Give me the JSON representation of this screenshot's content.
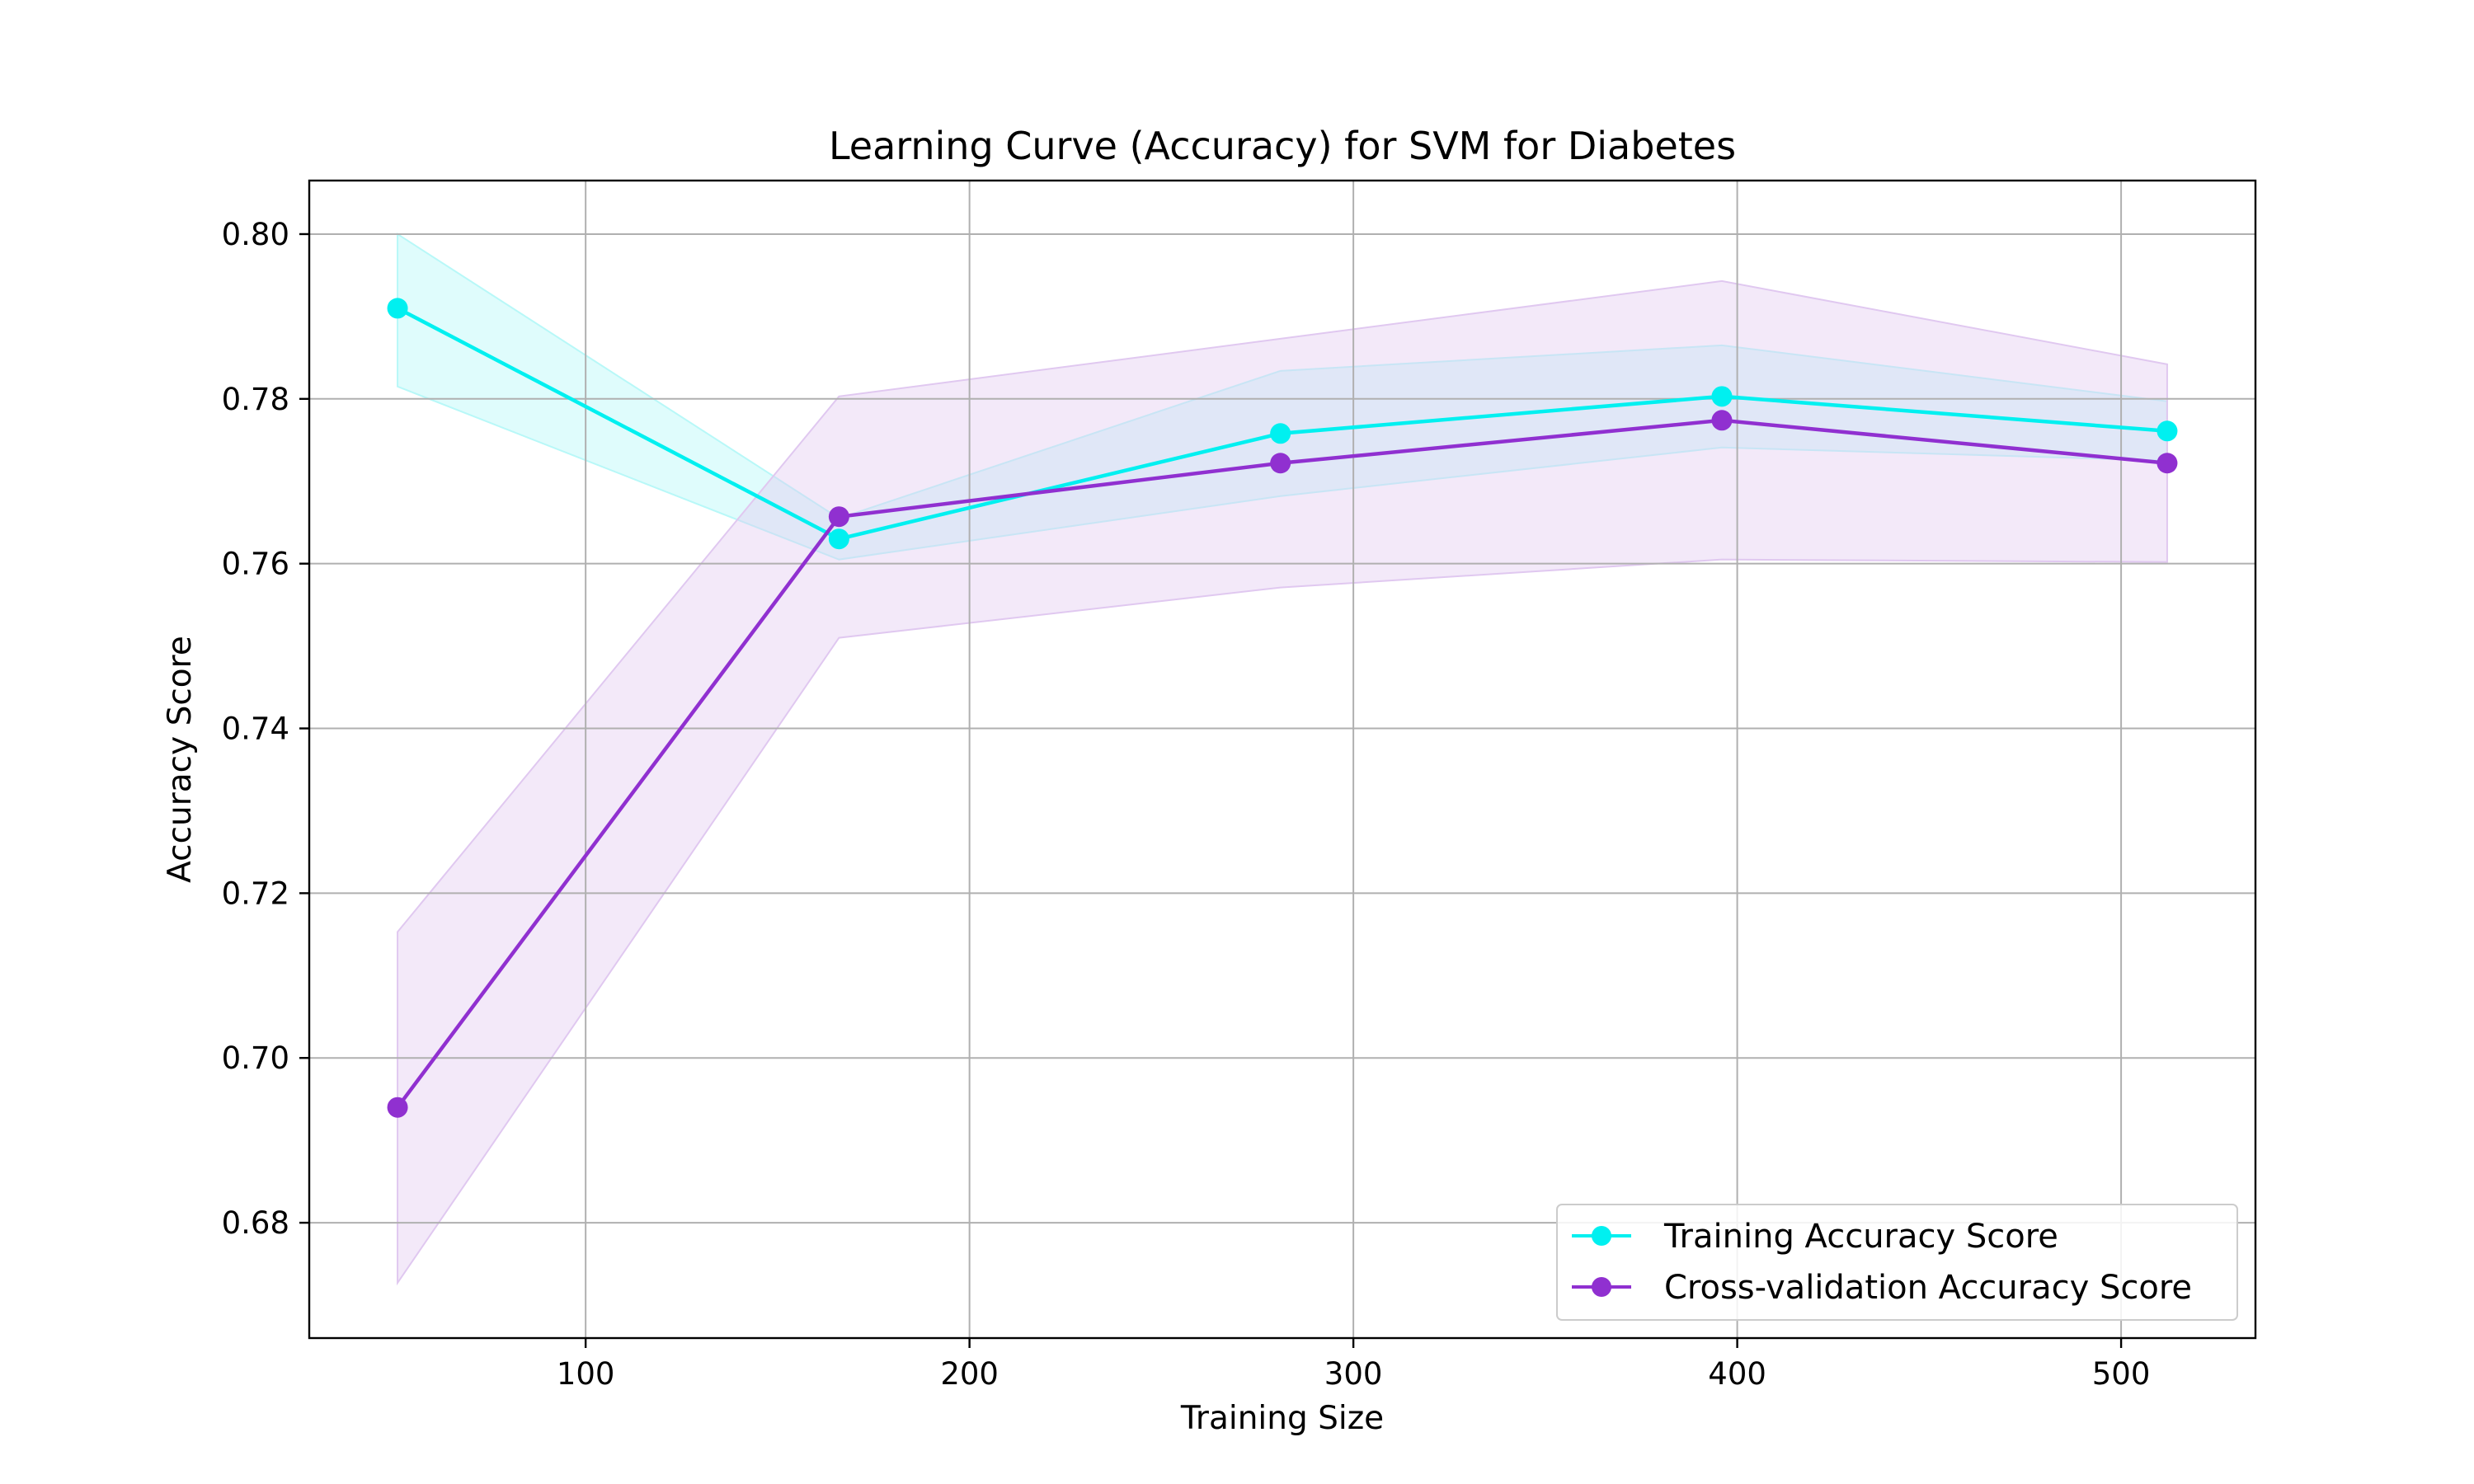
{
  "chart_data": {
    "type": "line",
    "title": "Learning Curve (Accuracy) for SVM for Diabetes",
    "xlabel": "Training Size",
    "ylabel": "Accuracy Score",
    "xlim": [
      28,
      535
    ],
    "ylim": [
      0.666,
      0.8065
    ],
    "xticks": [
      100,
      200,
      300,
      400,
      500
    ],
    "yticks": [
      0.68,
      0.7,
      0.72,
      0.74,
      0.76,
      0.78,
      0.8
    ],
    "xtick_labels": [
      "100",
      "200",
      "300",
      "400",
      "500"
    ],
    "ytick_labels": [
      "0.68",
      "0.70",
      "0.72",
      "0.74",
      "0.76",
      "0.78",
      "0.80"
    ],
    "grid": true,
    "legend_position": "lower right",
    "x": [
      51,
      166,
      281,
      396,
      512
    ],
    "series": [
      {
        "name": "Training Accuracy Score",
        "color": "#00f0f0",
        "band_color": "#b8f8f8",
        "values": [
          0.791,
          0.763,
          0.7758,
          0.7803,
          0.7761
        ],
        "band_lower": [
          0.7815,
          0.7605,
          0.7682,
          0.7741,
          0.7725
        ],
        "band_upper": [
          0.8,
          0.7655,
          0.7834,
          0.7865,
          0.7797
        ]
      },
      {
        "name": "Cross-validation Accuracy Score",
        "color": "#9030d0",
        "band_color": "#e0c8f0",
        "values": [
          0.694,
          0.7657,
          0.7722,
          0.7774,
          0.7722
        ],
        "band_lower": [
          0.6727,
          0.751,
          0.7571,
          0.7605,
          0.7602
        ],
        "band_upper": [
          0.7153,
          0.7803,
          0.7873,
          0.7943,
          0.7842
        ]
      }
    ]
  }
}
